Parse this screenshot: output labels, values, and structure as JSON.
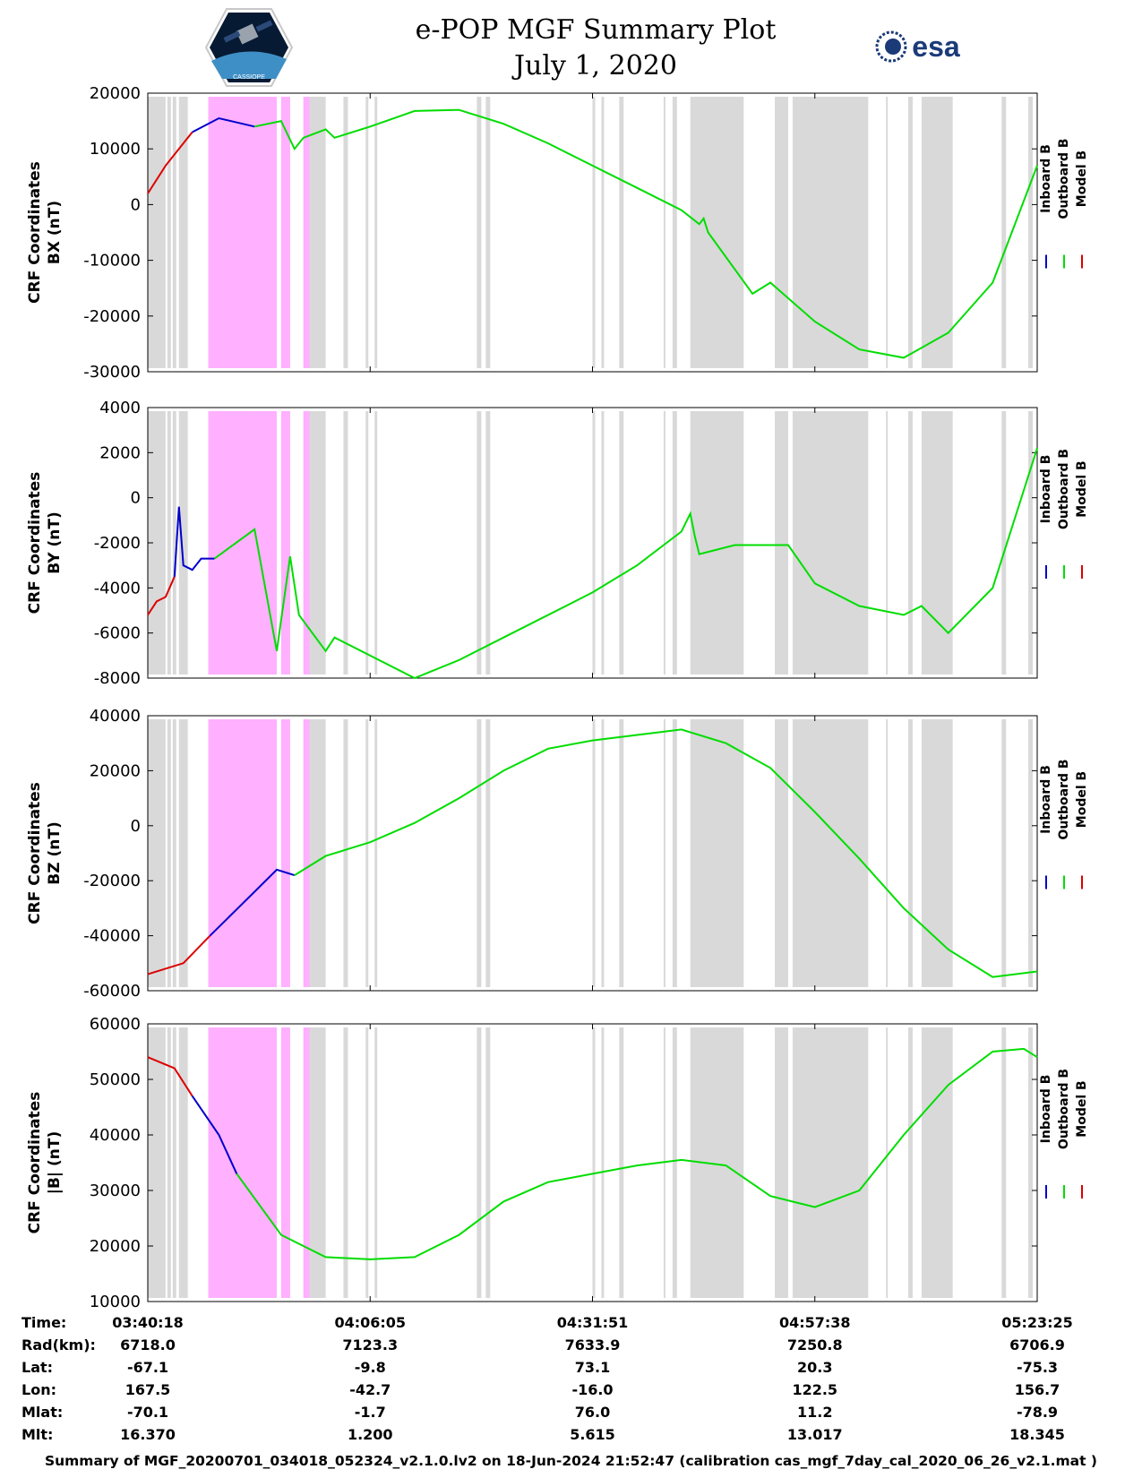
{
  "title_line1": "e-POP MGF Summary Plot",
  "title_line2": "July 1, 2020",
  "logos": {
    "left": "CASSIOPE",
    "right": "esa"
  },
  "colors": {
    "inboard": "#0000cc",
    "outboard": "#00dd00",
    "model": "#dd0000",
    "gap": "#d9d9d9",
    "highlight": "#ffb0ff"
  },
  "legend": [
    "Inboard B",
    "Outboard B",
    "Model B"
  ],
  "chart_data": [
    {
      "type": "line",
      "ylabel_line1": "CRF Coordinates",
      "ylabel_line2": "BX (nT)",
      "ylim": [
        -30000,
        20000
      ],
      "yticks": [
        "20000",
        "10000",
        "0",
        "-10000",
        "-20000",
        "-30000"
      ],
      "yticks_values": [
        20000,
        10000,
        0,
        -10000,
        -20000,
        -30000
      ],
      "series": [
        {
          "name": "Model B",
          "x": [
            0,
            0.02,
            0.04,
            0.05
          ],
          "y": [
            2000,
            7000,
            11000,
            13000
          ]
        },
        {
          "name": "Inboard B",
          "x": [
            0.05,
            0.08,
            0.12
          ],
          "y": [
            13000,
            15500,
            14000
          ]
        },
        {
          "name": "Outboard B",
          "x": [
            0.12,
            0.15,
            0.165,
            0.175,
            0.2,
            0.21,
            0.25,
            0.3,
            0.35,
            0.4,
            0.45,
            0.5,
            0.55,
            0.6,
            0.62,
            0.625,
            0.63,
            0.68,
            0.7,
            0.75,
            0.8,
            0.85,
            0.9,
            0.95,
            1.0
          ],
          "y": [
            14000,
            15000,
            10000,
            12000,
            13500,
            12000,
            14000,
            16800,
            17000,
            14500,
            11000,
            7000,
            3000,
            -1000,
            -3500,
            -2500,
            -5000,
            -16000,
            -14000,
            -21000,
            -26000,
            -27500,
            -23000,
            -14000,
            7000
          ]
        }
      ]
    },
    {
      "type": "line",
      "ylabel_line1": "CRF Coordinates",
      "ylabel_line2": "BY (nT)",
      "ylim": [
        -8000,
        4000
      ],
      "yticks": [
        "4000",
        "2000",
        "0",
        "-2000",
        "-4000",
        "-6000",
        "-8000"
      ],
      "yticks_values": [
        4000,
        2000,
        0,
        -2000,
        -4000,
        -6000,
        -8000
      ],
      "series": [
        {
          "name": "Model B",
          "x": [
            0,
            0.01,
            0.02,
            0.03
          ],
          "y": [
            -5200,
            -4600,
            -4400,
            -3500
          ]
        },
        {
          "name": "Inboard B",
          "x": [
            0.03,
            0.035,
            0.04,
            0.05,
            0.06,
            0.075
          ],
          "y": [
            -3500,
            -400,
            -3000,
            -3200,
            -2700,
            -2700
          ]
        },
        {
          "name": "Outboard B",
          "x": [
            0.075,
            0.12,
            0.145,
            0.16,
            0.17,
            0.2,
            0.21,
            0.3,
            0.35,
            0.4,
            0.5,
            0.55,
            0.6,
            0.61,
            0.615,
            0.62,
            0.66,
            0.72,
            0.75,
            0.8,
            0.85,
            0.87,
            0.9,
            0.95,
            1.0
          ],
          "y": [
            -2700,
            -1400,
            -6800,
            -2600,
            -5200,
            -6800,
            -6200,
            -8000,
            -7200,
            -6200,
            -4200,
            -3000,
            -1500,
            -700,
            -1700,
            -2500,
            -2100,
            -2100,
            -3800,
            -4800,
            -5200,
            -4800,
            -6000,
            -4000,
            2200
          ]
        }
      ]
    },
    {
      "type": "line",
      "ylabel_line1": "CRF Coordinates",
      "ylabel_line2": "BZ (nT)",
      "ylim": [
        -60000,
        40000
      ],
      "yticks": [
        "40000",
        "20000",
        "0",
        "-20000",
        "-40000",
        "-60000"
      ],
      "yticks_values": [
        40000,
        20000,
        0,
        -20000,
        -40000,
        -60000
      ],
      "series": [
        {
          "name": "Model B",
          "x": [
            0,
            0.04,
            0.07
          ],
          "y": [
            -54000,
            -50000,
            -40000
          ]
        },
        {
          "name": "Inboard B",
          "x": [
            0.07,
            0.12,
            0.145,
            0.165
          ],
          "y": [
            -40000,
            -24000,
            -16000,
            -18000
          ]
        },
        {
          "name": "Outboard B",
          "x": [
            0.165,
            0.2,
            0.25,
            0.3,
            0.35,
            0.4,
            0.45,
            0.5,
            0.55,
            0.6,
            0.65,
            0.7,
            0.75,
            0.8,
            0.85,
            0.9,
            0.95,
            1.0
          ],
          "y": [
            -18000,
            -11000,
            -6000,
            1000,
            10000,
            20000,
            28000,
            31000,
            33000,
            35000,
            30000,
            21000,
            5000,
            -12000,
            -30000,
            -45000,
            -55000,
            -53000
          ]
        }
      ]
    },
    {
      "type": "line",
      "ylabel_line1": "CRF Coordinates",
      "ylabel_line2": "|B| (nT)",
      "ylim": [
        10000,
        60000
      ],
      "yticks": [
        "60000",
        "50000",
        "40000",
        "30000",
        "20000",
        "10000"
      ],
      "yticks_values": [
        60000,
        50000,
        40000,
        30000,
        20000,
        10000
      ],
      "series": [
        {
          "name": "Model B",
          "x": [
            0,
            0.03,
            0.05
          ],
          "y": [
            54000,
            52000,
            47000
          ]
        },
        {
          "name": "Inboard B",
          "x": [
            0.05,
            0.08,
            0.1
          ],
          "y": [
            47000,
            40000,
            33000
          ]
        },
        {
          "name": "Outboard B",
          "x": [
            0.1,
            0.15,
            0.2,
            0.25,
            0.3,
            0.35,
            0.4,
            0.45,
            0.5,
            0.55,
            0.6,
            0.65,
            0.7,
            0.75,
            0.8,
            0.85,
            0.9,
            0.95,
            0.985,
            1.0
          ],
          "y": [
            33000,
            22000,
            18000,
            17600,
            18000,
            22000,
            28000,
            31500,
            33000,
            34500,
            35500,
            34500,
            29000,
            27000,
            30000,
            40000,
            49000,
            55000,
            55500,
            54000
          ]
        }
      ]
    }
  ],
  "gap_bands": [
    [
      0.0,
      0.02
    ],
    [
      0.022,
      0.026
    ],
    [
      0.028,
      0.032
    ],
    [
      0.035,
      0.045
    ],
    [
      0.07,
      0.12
    ],
    [
      0.12,
      0.145
    ],
    [
      0.15,
      0.16
    ],
    [
      0.175,
      0.2
    ],
    [
      0.22,
      0.225
    ],
    [
      0.245,
      0.248
    ],
    [
      0.255,
      0.258
    ],
    [
      0.37,
      0.375
    ],
    [
      0.38,
      0.385
    ],
    [
      0.5,
      0.503
    ],
    [
      0.51,
      0.513
    ],
    [
      0.53,
      0.535
    ],
    [
      0.58,
      0.582
    ],
    [
      0.59,
      0.595
    ],
    [
      0.61,
      0.67
    ],
    [
      0.705,
      0.72
    ],
    [
      0.725,
      0.81
    ],
    [
      0.83,
      0.832
    ],
    [
      0.855,
      0.86
    ],
    [
      0.87,
      0.905
    ],
    [
      0.96,
      0.965
    ],
    [
      0.99,
      0.995
    ]
  ],
  "highlight_bands": [
    [
      0.068,
      0.12
    ],
    [
      0.12,
      0.145
    ],
    [
      0.15,
      0.16
    ],
    [
      0.175,
      0.182
    ]
  ],
  "ephemeris": {
    "labels": [
      "Time:",
      "Rad(km):",
      "Lat:",
      "Lon:",
      "Mlat:",
      "Mlt:"
    ],
    "columns": [
      [
        "03:40:18",
        "6718.0",
        "-67.1",
        "167.5",
        "-70.1",
        "16.370"
      ],
      [
        "04:06:05",
        "7123.3",
        "-9.8",
        "-42.7",
        "-1.7",
        "1.200"
      ],
      [
        "04:31:51",
        "7633.9",
        "73.1",
        "-16.0",
        "76.0",
        "5.615"
      ],
      [
        "04:57:38",
        "7250.8",
        "20.3",
        "122.5",
        "11.2",
        "13.017"
      ],
      [
        "05:23:25",
        "6706.9",
        "-75.3",
        "156.7",
        "-78.9",
        "18.345"
      ]
    ]
  },
  "footer": "Summary of MGF_20200701_034018_052324_v2.1.0.lv2 on 18-Jun-2024 21:52:47 (calibration cas_mgf_7day_cal_2020_06_26_v2.1.mat )"
}
